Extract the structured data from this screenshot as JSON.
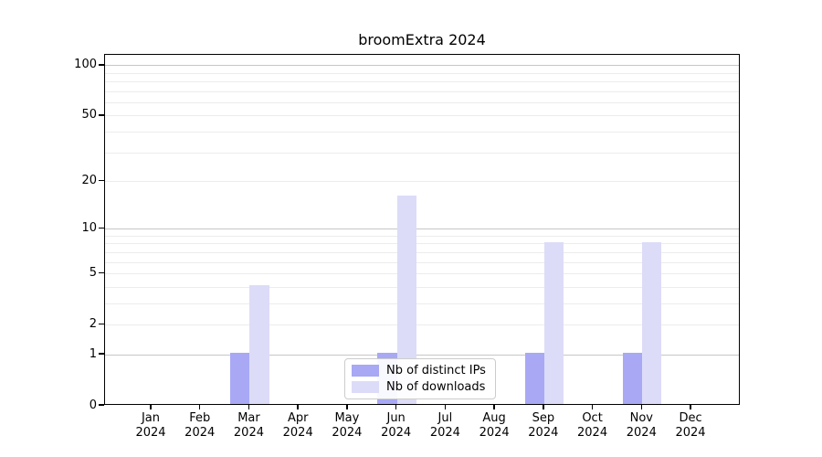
{
  "figure": {
    "title": "broomExtra 2024"
  },
  "legend": {
    "items": [
      {
        "label": "Nb of distinct IPs"
      },
      {
        "label": "Nb of downloads"
      }
    ]
  },
  "chart_data": {
    "type": "bar",
    "title": "broomExtra 2024",
    "categories": [
      "Jan 2024",
      "Feb 2024",
      "Mar 2024",
      "Apr 2024",
      "May 2024",
      "Jun 2024",
      "Jul 2024",
      "Aug 2024",
      "Sep 2024",
      "Oct 2024",
      "Nov 2024",
      "Dec 2024"
    ],
    "series": [
      {
        "name": "Nb of distinct IPs",
        "color": "#a8a8f5",
        "values": [
          0,
          0,
          1,
          0,
          0,
          1,
          0,
          0,
          1,
          0,
          1,
          0
        ]
      },
      {
        "name": "Nb of downloads",
        "color": "#dcdcf8",
        "values": [
          0,
          0,
          4,
          0,
          0,
          16,
          0,
          0,
          8,
          0,
          8,
          0
        ]
      }
    ],
    "xlabel": "",
    "ylabel": "",
    "y_scale": "log1p",
    "ylim": [
      0,
      116
    ],
    "y_ticks": [
      0,
      1,
      2,
      5,
      10,
      20,
      50,
      100
    ],
    "y_major_gridlines": [
      1,
      10,
      100
    ],
    "y_minor_gridlines": [
      2,
      3,
      4,
      5,
      6,
      7,
      8,
      9,
      20,
      30,
      40,
      50,
      60,
      70,
      80,
      90
    ],
    "legend_position": "lower center",
    "grid": true
  },
  "colors": {
    "background": "#ffffff",
    "axis": "#000000",
    "text": "#000000",
    "grid_major": "#c6c6c6",
    "grid_minor": "#ececec",
    "legend_border": "#cccccc"
  }
}
